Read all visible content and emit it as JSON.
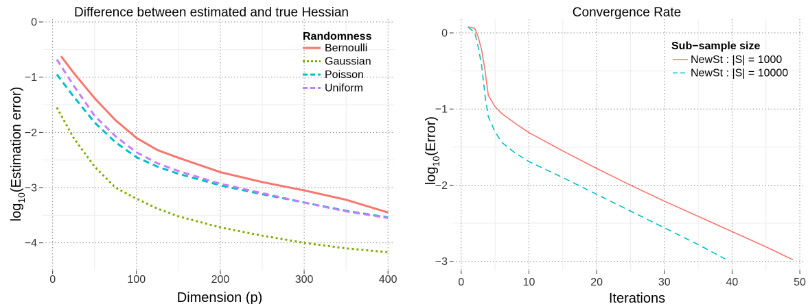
{
  "chart_data": [
    {
      "type": "line",
      "title": "Difference between estimated and true Hessian",
      "xlabel": "Dimension (p)",
      "ylabel": "log10(Estimation error)",
      "ylabel_parts": {
        "pre": "log",
        "sub": "10",
        "post": "(Estimation error)"
      },
      "xlim": [
        -12,
        408
      ],
      "ylim": [
        -4.5,
        0.05
      ],
      "xticks": [
        0,
        100,
        200,
        300,
        400
      ],
      "yticks": [
        0,
        -1,
        -2,
        -3,
        -4
      ],
      "xtick_labels": [
        "0",
        "100",
        "200",
        "300",
        "400"
      ],
      "ytick_labels": [
        "0",
        "−1",
        "−2",
        "−3",
        "−4"
      ],
      "grid": true,
      "legend": {
        "title": "Randomness",
        "position": "top-right"
      },
      "series": [
        {
          "name": "Bernoulli",
          "color": "#F8766D",
          "dash": "solid",
          "x": [
            10,
            25,
            50,
            75,
            100,
            125,
            150,
            200,
            250,
            300,
            350,
            400
          ],
          "y": [
            -0.62,
            -0.92,
            -1.38,
            -1.78,
            -2.1,
            -2.32,
            -2.46,
            -2.72,
            -2.9,
            -3.05,
            -3.22,
            -3.45
          ]
        },
        {
          "name": "Gaussian",
          "color": "#7CAE00",
          "dash": "dotted",
          "x": [
            5,
            25,
            50,
            75,
            100,
            125,
            150,
            200,
            250,
            300,
            350,
            400
          ],
          "y": [
            -1.55,
            -2.1,
            -2.62,
            -3.0,
            -3.2,
            -3.38,
            -3.52,
            -3.72,
            -3.87,
            -4.0,
            -4.1,
            -4.17
          ]
        },
        {
          "name": "Poisson",
          "color": "#00BFC4",
          "dash": "dashed",
          "x": [
            5,
            25,
            50,
            75,
            100,
            125,
            150,
            200,
            250,
            300,
            350,
            400
          ],
          "y": [
            -0.95,
            -1.35,
            -1.82,
            -2.18,
            -2.45,
            -2.62,
            -2.75,
            -2.96,
            -3.12,
            -3.27,
            -3.42,
            -3.54
          ]
        },
        {
          "name": "Uniform",
          "color": "#C77CFF",
          "dash": "dashed",
          "x": [
            5,
            25,
            50,
            75,
            100,
            125,
            150,
            200,
            250,
            300,
            350,
            400
          ],
          "y": [
            -0.68,
            -1.15,
            -1.7,
            -2.07,
            -2.36,
            -2.56,
            -2.7,
            -2.93,
            -3.1,
            -3.27,
            -3.43,
            -3.55
          ]
        }
      ]
    },
    {
      "type": "line",
      "title": "Convergence Rate",
      "xlabel": "Iterations",
      "ylabel": "log10(Error)",
      "ylabel_parts": {
        "pre": "log",
        "sub": "10",
        "post": "(Error)"
      },
      "xlim": [
        -1.2,
        50.5
      ],
      "ylim": [
        -3.12,
        0.18
      ],
      "xticks": [
        0,
        10,
        20,
        30,
        40,
        50
      ],
      "yticks": [
        0,
        -1,
        -2,
        -3
      ],
      "xtick_labels": [
        "0",
        "10",
        "20",
        "30",
        "40",
        "50"
      ],
      "ytick_labels": [
        "0",
        "−1",
        "−2",
        "−3"
      ],
      "grid": true,
      "legend": {
        "title": "Sub−sample size",
        "position": "top-right"
      },
      "series": [
        {
          "name": "NewSt : |S| = 1000",
          "label_pre": "NewSt : ",
          "label_set": "S",
          "label_post": " = 1000",
          "color": "#F8766D",
          "dash": "solid",
          "x": [
            1,
            2,
            2.5,
            3,
            3.5,
            4,
            5,
            6,
            8,
            10,
            15,
            20,
            25,
            30,
            35,
            40,
            45,
            49
          ],
          "y": [
            0.08,
            0.06,
            -0.05,
            -0.22,
            -0.48,
            -0.82,
            -0.97,
            -1.06,
            -1.19,
            -1.31,
            -1.55,
            -1.78,
            -2.0,
            -2.21,
            -2.41,
            -2.61,
            -2.81,
            -2.98
          ]
        },
        {
          "name": "NewSt : |S| = 10000",
          "label_pre": "NewSt : ",
          "label_set": "S",
          "label_post": " = 10000",
          "color": "#00BFC4",
          "dash": "dashed",
          "x": [
            1,
            2,
            2.5,
            3,
            3.3,
            3.6,
            4,
            5,
            6,
            8,
            10,
            15,
            20,
            25,
            30,
            35,
            39
          ],
          "y": [
            0.08,
            0.0,
            -0.18,
            -0.42,
            -0.65,
            -0.88,
            -1.1,
            -1.3,
            -1.44,
            -1.58,
            -1.69,
            -1.9,
            -2.12,
            -2.34,
            -2.56,
            -2.78,
            -2.97
          ]
        }
      ]
    }
  ]
}
